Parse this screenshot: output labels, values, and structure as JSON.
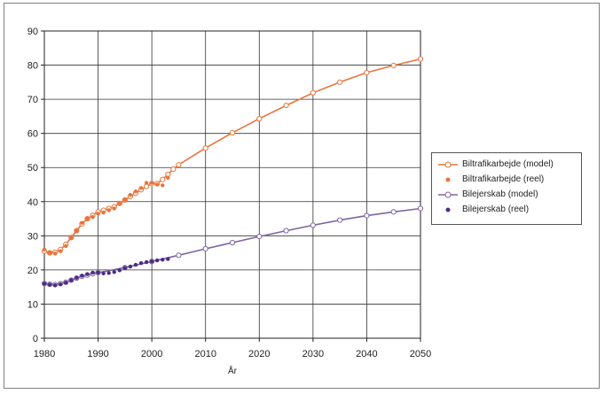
{
  "chart_data": {
    "type": "line",
    "title": "",
    "xlabel": "År",
    "ylabel": "",
    "xlim": [
      1980,
      2050
    ],
    "ylim": [
      0,
      90
    ],
    "x_ticks": [
      "1980",
      "1990",
      "2000",
      "2010",
      "2020",
      "2030",
      "2040",
      "2050"
    ],
    "y_ticks": [
      "0",
      "10",
      "20",
      "30",
      "40",
      "50",
      "60",
      "70",
      "80",
      "90"
    ],
    "grid": true,
    "legend_position": "right",
    "series": [
      {
        "name": "Biltrafikarbejde (model)",
        "marker": "open-circle-line",
        "color": "#e8743b",
        "x": [
          1980,
          1981,
          1982,
          1983,
          1984,
          1985,
          1986,
          1987,
          1988,
          1989,
          1990,
          1991,
          1992,
          1993,
          1994,
          1995,
          1996,
          1997,
          1998,
          1999,
          2000,
          2001,
          2002,
          2003,
          2004,
          2005,
          2010,
          2015,
          2020,
          2025,
          2030,
          2035,
          2040,
          2045,
          2050
        ],
        "y": [
          25.5,
          25,
          25.2,
          26,
          27.5,
          29.5,
          31.5,
          33.5,
          35,
          36,
          37,
          37.5,
          38,
          38.5,
          39.5,
          40.5,
          41.5,
          42.5,
          43.5,
          44.5,
          45.3,
          45.3,
          46.5,
          48,
          49.5,
          50.8,
          55.7,
          60.2,
          64.3,
          68.2,
          71.9,
          75,
          77.8,
          79.9,
          81.8
        ]
      },
      {
        "name": "Biltrafikarbejde (reel)",
        "marker": "filled-dot",
        "color": "#e8743b",
        "x": [
          1980,
          1981,
          1982,
          1983,
          1984,
          1985,
          1986,
          1987,
          1988,
          1989,
          1990,
          1991,
          1992,
          1993,
          1994,
          1995,
          1996,
          1997,
          1998,
          1999,
          2000,
          2001,
          2002,
          2003
        ],
        "y": [
          26,
          25,
          24.8,
          25.5,
          27,
          29.5,
          31.5,
          33.8,
          35,
          35.5,
          36.5,
          36.8,
          37.5,
          38,
          39.5,
          40.5,
          42,
          43,
          44,
          45.5,
          45.5,
          45,
          44.8,
          47
        ]
      },
      {
        "name": "Bilejerskab (model)",
        "marker": "open-circle-line",
        "color": "#8064a2",
        "x": [
          1980,
          1981,
          1982,
          1983,
          1984,
          1985,
          1986,
          1987,
          1988,
          1989,
          1990,
          1995,
          2000,
          2005,
          2010,
          2015,
          2020,
          2025,
          2030,
          2035,
          2040,
          2045,
          2050
        ],
        "y": [
          16,
          15.8,
          15.7,
          16,
          16.4,
          17,
          17.6,
          18.1,
          18.5,
          18.9,
          19.2,
          20.7,
          22.5,
          24.3,
          26.2,
          28,
          29.8,
          31.5,
          33.1,
          34.6,
          35.9,
          37,
          38
        ]
      },
      {
        "name": "Bilejerskab (reel)",
        "marker": "filled-dot",
        "color": "#4b2d84",
        "x": [
          1980,
          1981,
          1982,
          1983,
          1984,
          1985,
          1986,
          1987,
          1988,
          1989,
          1990,
          1991,
          1992,
          1993,
          1994,
          1995,
          1996,
          1997,
          1998,
          1999,
          2000,
          2001,
          2002,
          2003
        ],
        "y": [
          16,
          15.7,
          15.5,
          15.8,
          16.3,
          17,
          17.7,
          18.3,
          18.8,
          19.2,
          19.2,
          19,
          19.1,
          19.4,
          19.9,
          20.6,
          21,
          21.5,
          22,
          22.3,
          22.5,
          22.8,
          23,
          23.2
        ]
      }
    ]
  }
}
